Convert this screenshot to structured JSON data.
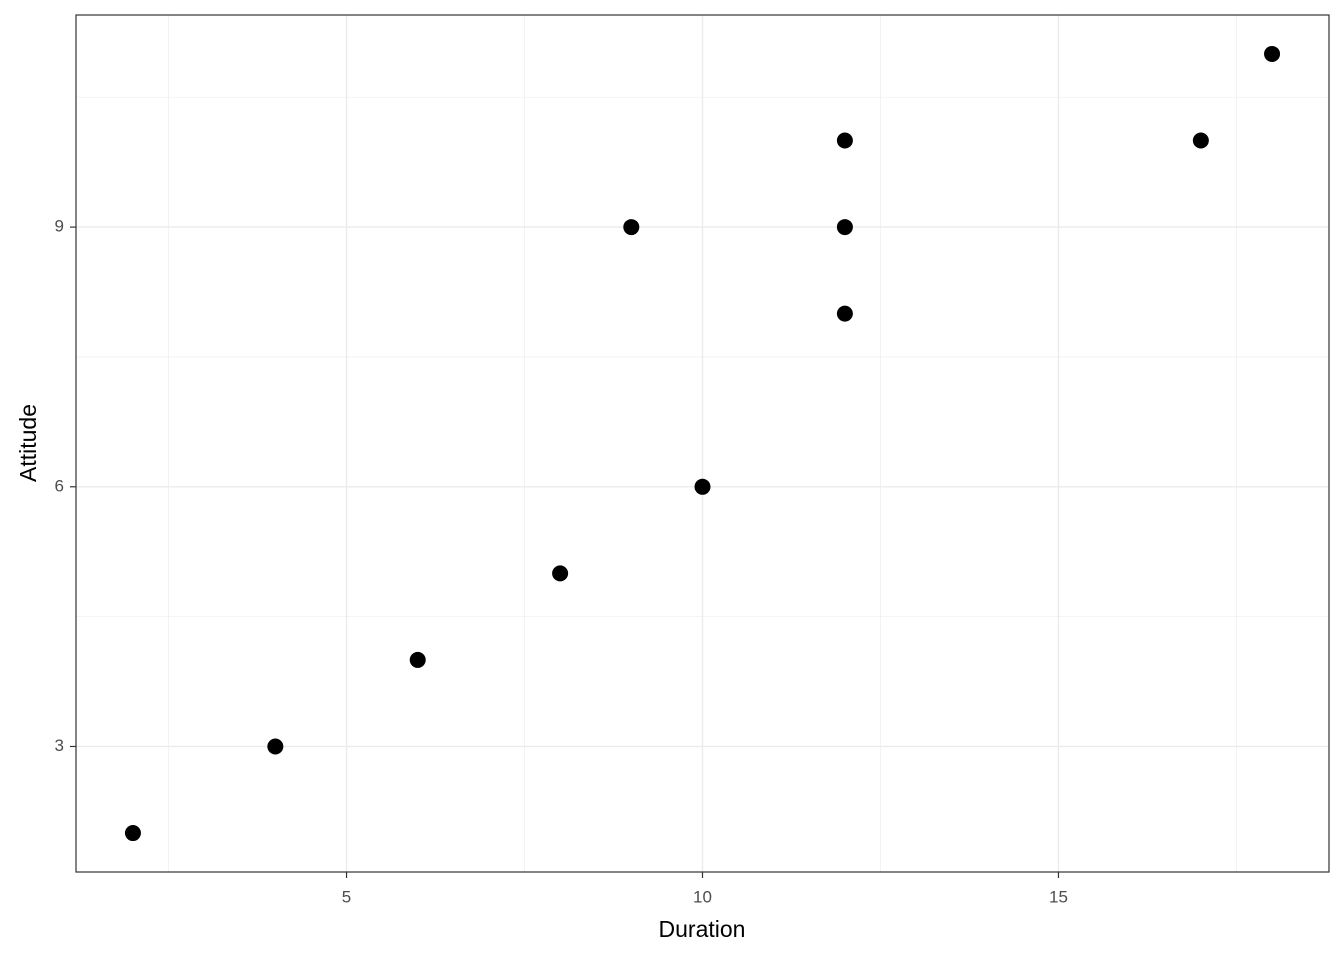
{
  "chart_data": {
    "type": "scatter",
    "x_label": "Duration",
    "y_label": "Attitude",
    "x": [
      2,
      4,
      6,
      8,
      9,
      10,
      12,
      12,
      12,
      17,
      18
    ],
    "values": [
      2,
      3,
      4,
      5,
      9,
      6,
      10,
      9,
      8,
      10,
      11
    ],
    "color": "#000000",
    "xlim": [
      1.2,
      18.8
    ],
    "xticks": [
      5,
      10,
      15
    ],
    "x_minor_grid": [
      2.5,
      7.5,
      12.5,
      17.5
    ],
    "ylim": [
      1.55,
      11.45
    ],
    "yticks": [
      3,
      6,
      9
    ],
    "y_minor_grid": [
      4.5,
      7.5,
      10.5
    ],
    "grid": true
  }
}
